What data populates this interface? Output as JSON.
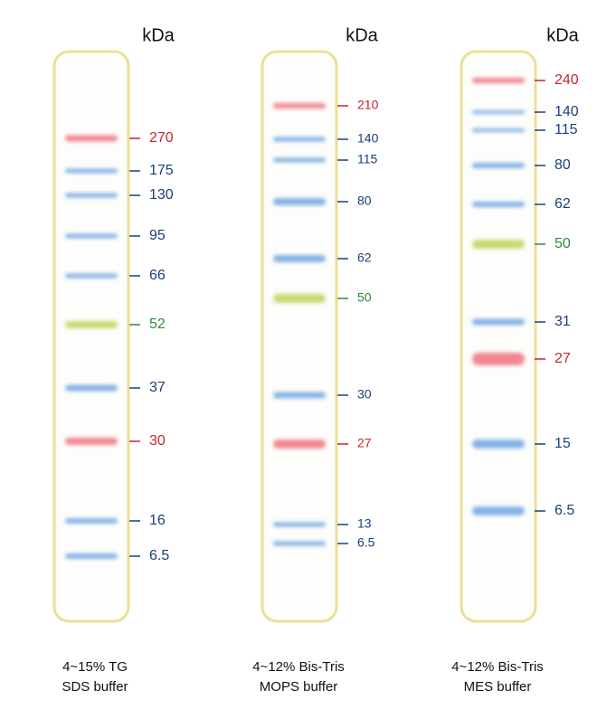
{
  "lanes": [
    {
      "unit": "kDa",
      "caption": [
        "4~15% TG",
        "SDS buffer"
      ],
      "bands": [
        {
          "label": "270",
          "color": "red"
        },
        {
          "label": "175",
          "color": "blue"
        },
        {
          "label": "130",
          "color": "blue"
        },
        {
          "label": "95",
          "color": "blue"
        },
        {
          "label": "66",
          "color": "blue"
        },
        {
          "label": "52",
          "color": "green"
        },
        {
          "label": "37",
          "color": "blue"
        },
        {
          "label": "30",
          "color": "red"
        },
        {
          "label": "16",
          "color": "blue"
        },
        {
          "label": "6.5",
          "color": "blue"
        }
      ]
    },
    {
      "unit": "kDa",
      "caption": [
        "4~12% Bis-Tris",
        "MOPS buffer"
      ],
      "bands": [
        {
          "label": "210",
          "color": "red"
        },
        {
          "label": "140",
          "color": "blue"
        },
        {
          "label": "115",
          "color": "blue"
        },
        {
          "label": "80",
          "color": "blue"
        },
        {
          "label": "62",
          "color": "blue"
        },
        {
          "label": "50",
          "color": "green"
        },
        {
          "label": "30",
          "color": "blue"
        },
        {
          "label": "27",
          "color": "red"
        },
        {
          "label": "13",
          "color": "blue"
        },
        {
          "label": "6.5",
          "color": "blue"
        }
      ]
    },
    {
      "unit": "kDa",
      "caption": [
        "4~12% Bis-Tris",
        "MES buffer"
      ],
      "bands": [
        {
          "label": "240",
          "color": "red"
        },
        {
          "label": "140",
          "color": "blue"
        },
        {
          "label": "115",
          "color": "blue"
        },
        {
          "label": "80",
          "color": "blue"
        },
        {
          "label": "62",
          "color": "blue"
        },
        {
          "label": "50",
          "color": "green"
        },
        {
          "label": "31",
          "color": "blue"
        },
        {
          "label": "27",
          "color": "red"
        },
        {
          "label": "15",
          "color": "blue"
        },
        {
          "label": "6.5",
          "color": "blue"
        }
      ]
    }
  ]
}
